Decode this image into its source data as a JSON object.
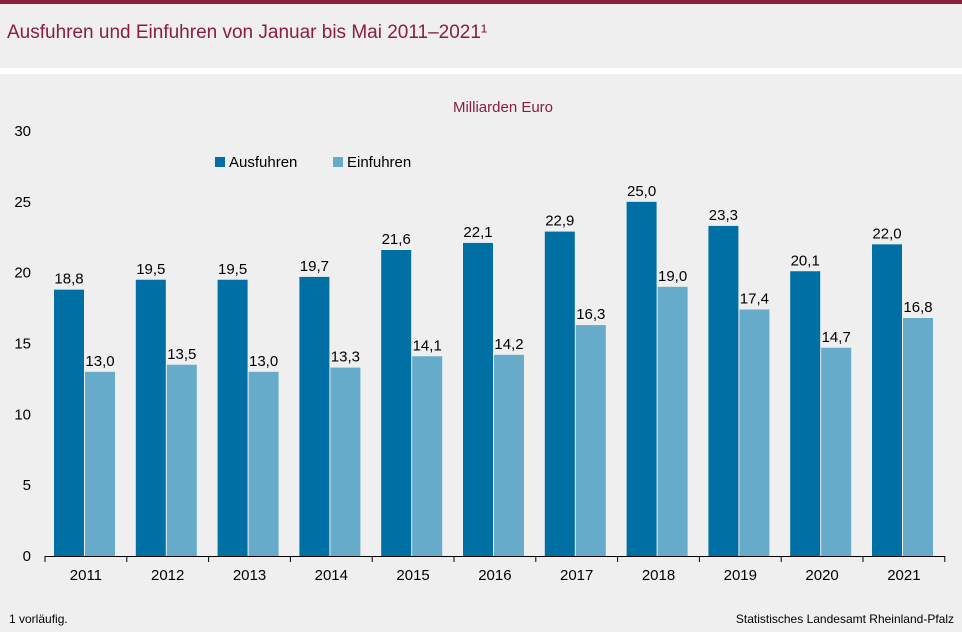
{
  "title": "Ausfuhren und Einfuhren von Januar bis Mai 2011–2021¹",
  "footnote": "1 vorläufig.",
  "source": "Statistisches Landesamt Rheinland-Pfalz",
  "colors": {
    "accent": "#8a1e3c",
    "ausfuhren": "#006fa3",
    "einfuhren": "#66abca"
  },
  "chart_data": {
    "type": "bar",
    "unit_label": "Milliarden Euro",
    "categories": [
      "2011",
      "2012",
      "2013",
      "2014",
      "2015",
      "2016",
      "2017",
      "2018",
      "2019",
      "2020",
      "2021"
    ],
    "series": [
      {
        "name": "Ausfuhren",
        "values": [
          18.8,
          19.5,
          19.5,
          19.7,
          21.6,
          22.1,
          22.9,
          25.0,
          23.3,
          20.1,
          22.0
        ],
        "labels": [
          "18,8",
          "19,5",
          "19,5",
          "19,7",
          "21,6",
          "22,1",
          "22,9",
          "25,0",
          "23,3",
          "20,1",
          "22,0"
        ]
      },
      {
        "name": "Einfuhren",
        "values": [
          13.0,
          13.5,
          13.0,
          13.3,
          14.1,
          14.2,
          16.3,
          19.0,
          17.4,
          14.7,
          16.8
        ],
        "labels": [
          "13,0",
          "13,5",
          "13,0",
          "13,3",
          "14,1",
          "14,2",
          "16,3",
          "19,0",
          "17,4",
          "14,7",
          "16,8"
        ]
      }
    ],
    "yticks": [
      0,
      5,
      10,
      15,
      20,
      25,
      30
    ],
    "ylim": [
      0,
      30
    ],
    "grid": false,
    "legend_position": "top-left"
  }
}
